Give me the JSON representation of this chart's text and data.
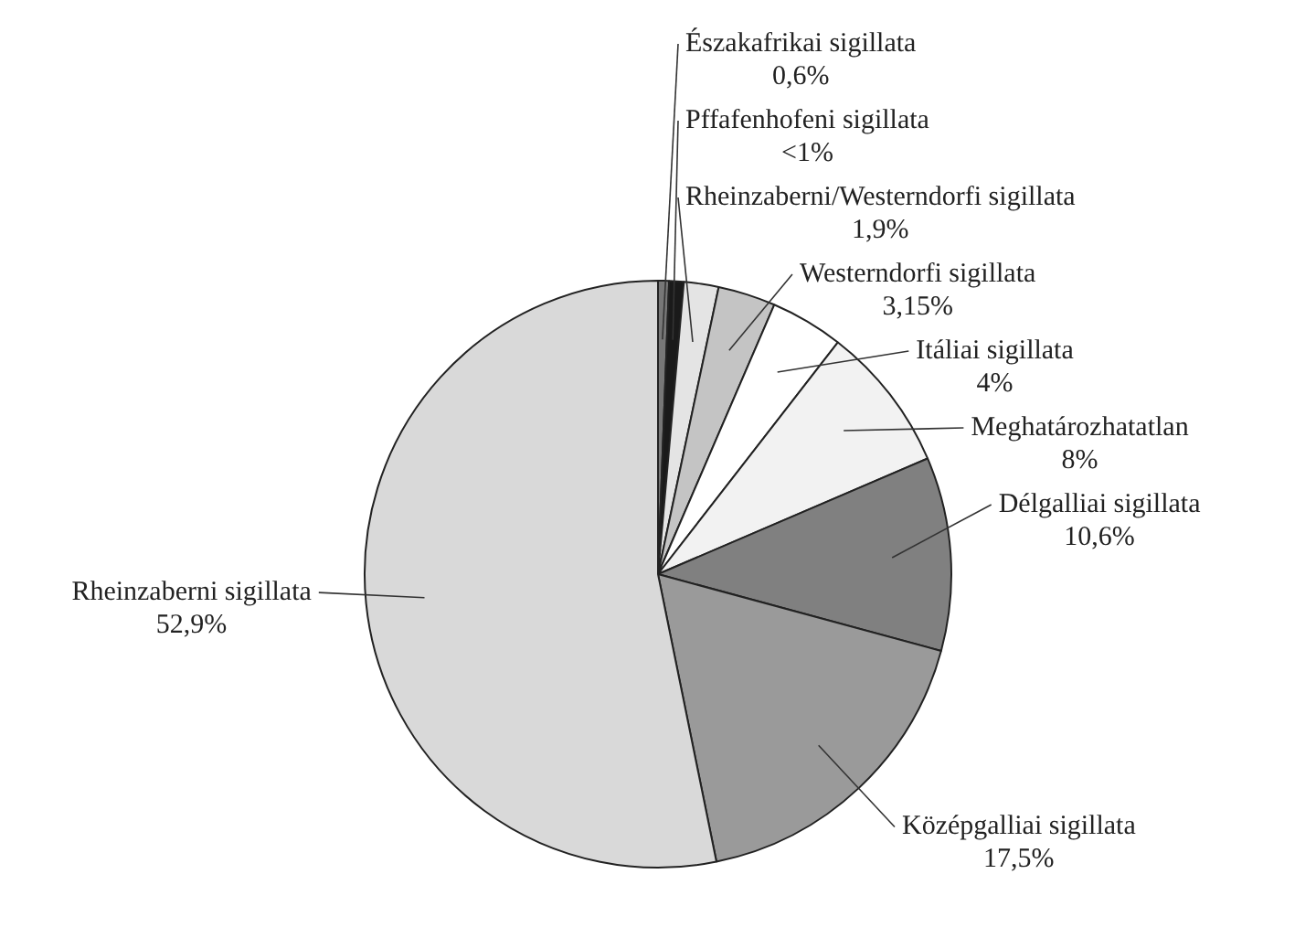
{
  "chart_data": {
    "type": "pie",
    "categories": [
      "Északafrikai sigillata",
      "Pffafenhofeni sigillata",
      "Rheinzaberni/Westerndorfi sigillata",
      "Westerndorfi sigillata",
      "Itáliai sigillata",
      "Meghatározhatatlan",
      "Délgalliai sigillata",
      "Középgalliai sigillata",
      "Rheinzaberni sigillata"
    ],
    "values": [
      0.6,
      0.8,
      1.9,
      3.15,
      4,
      8,
      10.6,
      17.5,
      52.9
    ],
    "value_labels": [
      "0,6%",
      "<1%",
      "1,9%",
      "3,15%",
      "4%",
      "8%",
      "10,6%",
      "17,5%",
      "52,9%"
    ],
    "colors": [
      "#777777",
      "#1a1a1a",
      "#e4e4e4",
      "#c4c4c4",
      "#ffffff",
      "#f2f2f2",
      "#808080",
      "#9a9a9a",
      "#d9d9d9"
    ],
    "legend": false
  }
}
